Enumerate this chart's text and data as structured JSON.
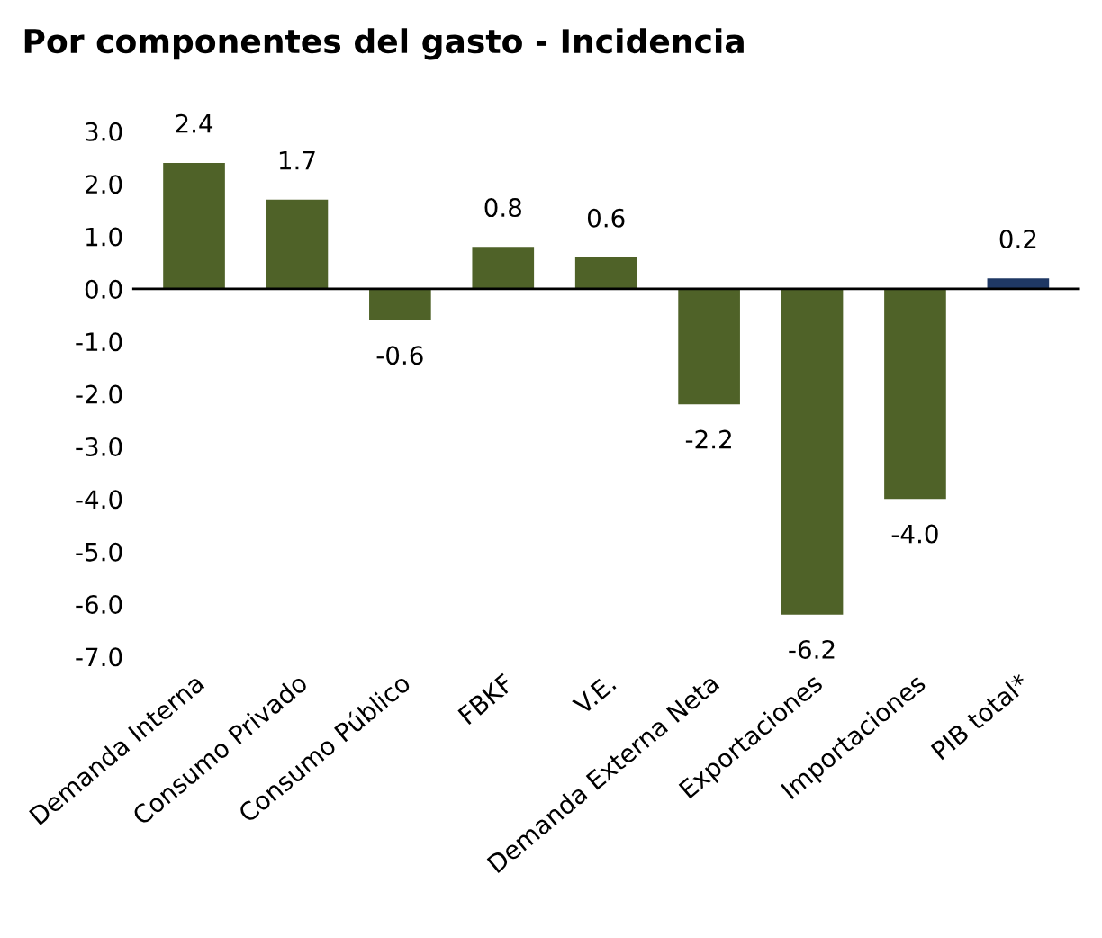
{
  "chart_data": {
    "type": "bar",
    "title": "Por componentes del gasto - Incidencia",
    "categories": [
      "Demanda Interna",
      "Consumo Privado",
      "Consumo Público",
      "FBKF",
      "V.E.",
      "Demanda Externa Neta",
      "Exportaciones",
      "Importaciones",
      "PIB total*"
    ],
    "values": [
      2.4,
      1.7,
      -0.6,
      0.8,
      0.6,
      -2.2,
      -6.2,
      -4.0,
      0.2
    ],
    "colors": [
      "#4f6228",
      "#4f6228",
      "#4f6228",
      "#4f6228",
      "#4f6228",
      "#4f6228",
      "#4f6228",
      "#4f6228",
      "#1f3864"
    ],
    "value_labels": [
      "2.4",
      "1.7",
      "-0.6",
      "0.8",
      "0.6",
      "-2.2",
      "-6.2",
      "-4.0",
      "0.2"
    ],
    "ylim": [
      -7.0,
      3.0
    ],
    "yticks": [
      {
        "value": 3,
        "label": "3.0"
      },
      {
        "value": 2,
        "label": "2.0"
      },
      {
        "value": 1,
        "label": "1.0"
      },
      {
        "value": 0,
        "label": "0.0"
      },
      {
        "value": -1,
        "label": "-1.0"
      },
      {
        "value": -2,
        "label": "-2.0"
      },
      {
        "value": -3,
        "label": "-3.0"
      },
      {
        "value": -4,
        "label": "-4.0"
      },
      {
        "value": -5,
        "label": "-5.0"
      },
      {
        "value": -6,
        "label": "-6.0"
      },
      {
        "value": -7,
        "label": "-7.0"
      }
    ],
    "ref_lines": [
      {
        "axis": "y",
        "value": 0,
        "color": "#000000"
      }
    ],
    "grid": false,
    "legend": false
  }
}
